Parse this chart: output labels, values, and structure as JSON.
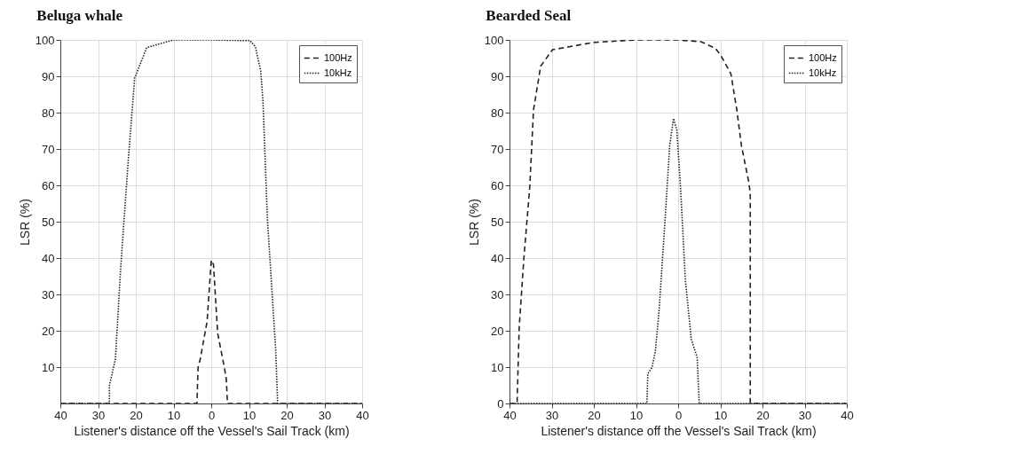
{
  "chart_data": [
    {
      "type": "line",
      "title": "Beluga whale",
      "xlabel": "Listener's distance off the Vessel's Sail Track (km)",
      "ylabel": "LSR (%)",
      "xlim": [
        -40,
        40
      ],
      "ylim": [
        0,
        100
      ],
      "xticks": [
        {
          "value": -40,
          "label": "40"
        },
        {
          "value": -30,
          "label": "30"
        },
        {
          "value": -20,
          "label": "20"
        },
        {
          "value": -10,
          "label": "10"
        },
        0,
        10,
        20,
        30,
        40
      ],
      "yticks": [
        10,
        20,
        30,
        40,
        50,
        60,
        70,
        80,
        90,
        100
      ],
      "grid": true,
      "legend": "top right",
      "series": [
        {
          "name": "100Hz",
          "color": "#222222",
          "line_style": "dashed",
          "x": [
            -40,
            -3.8,
            -3.5,
            -2.9,
            -1.1,
            0,
            0.6,
            1.7,
            3.4,
            4,
            4.3,
            40
          ],
          "values": [
            0,
            0,
            9.9,
            12.3,
            22.6,
            39.4,
            38.2,
            19.3,
            10.3,
            6.6,
            0,
            0
          ]
        },
        {
          "name": "10kHz",
          "color": "#222222",
          "line_style": "dotted",
          "x": [
            -40,
            -27,
            -27,
            -25.4,
            -24,
            -22,
            -20.3,
            -17.1,
            -10,
            0,
            10.3,
            11.7,
            13.1,
            13.7,
            14.9,
            17.1,
            17.6,
            40
          ],
          "values": [
            0,
            0,
            4.9,
            12.3,
            37.4,
            66.9,
            89.5,
            97.9,
            100,
            100,
            99.8,
            98.1,
            91.5,
            83.3,
            50.5,
            14.4,
            0,
            0
          ]
        }
      ]
    },
    {
      "type": "line",
      "title": "Bearded Seal",
      "xlabel": "Listener's distance off the Vessel's Sail Track (km)",
      "ylabel": "LSR (%)",
      "xlim": [
        -40,
        40
      ],
      "ylim": [
        0,
        100
      ],
      "xticks": [
        {
          "value": -40,
          "label": "40"
        },
        {
          "value": -30,
          "label": "30"
        },
        {
          "value": -20,
          "label": "20"
        },
        {
          "value": -10,
          "label": "10"
        },
        0,
        10,
        20,
        30,
        40
      ],
      "yticks": [
        0,
        10,
        20,
        30,
        40,
        50,
        60,
        70,
        80,
        90,
        100
      ],
      "grid": true,
      "legend": "top right",
      "series": [
        {
          "name": "100Hz",
          "color": "#222222",
          "line_style": "dashed",
          "x": [
            -40,
            -38.2,
            -37.7,
            -36.6,
            -35.2,
            -34.3,
            -32.6,
            -29.8,
            -20.1,
            -9.9,
            0,
            5.4,
            8.8,
            10.2,
            12.5,
            13.9,
            15,
            16.7,
            17.1,
            17.1,
            40
          ],
          "values": [
            0,
            0,
            20.9,
            39.8,
            59.5,
            80.8,
            92.8,
            97.3,
            99.3,
            100,
            100,
            99.5,
            97.7,
            95.6,
            90.7,
            80.9,
            71,
            61.2,
            57.9,
            0,
            0
          ]
        },
        {
          "name": "10kHz",
          "color": "#222222",
          "line_style": "dotted",
          "x": [
            -40,
            -7.4,
            -7.2,
            -6.2,
            -5.4,
            -4.5,
            -3.1,
            -2,
            -1.1,
            -0.3,
            0.6,
            1.7,
            3.1,
            4.5,
            5,
            40
          ],
          "values": [
            0,
            0,
            8.2,
            9.9,
            14.4,
            25.9,
            50.5,
            71,
            78.4,
            75.1,
            58.7,
            34.1,
            17.7,
            12.7,
            0,
            0
          ]
        }
      ]
    }
  ]
}
